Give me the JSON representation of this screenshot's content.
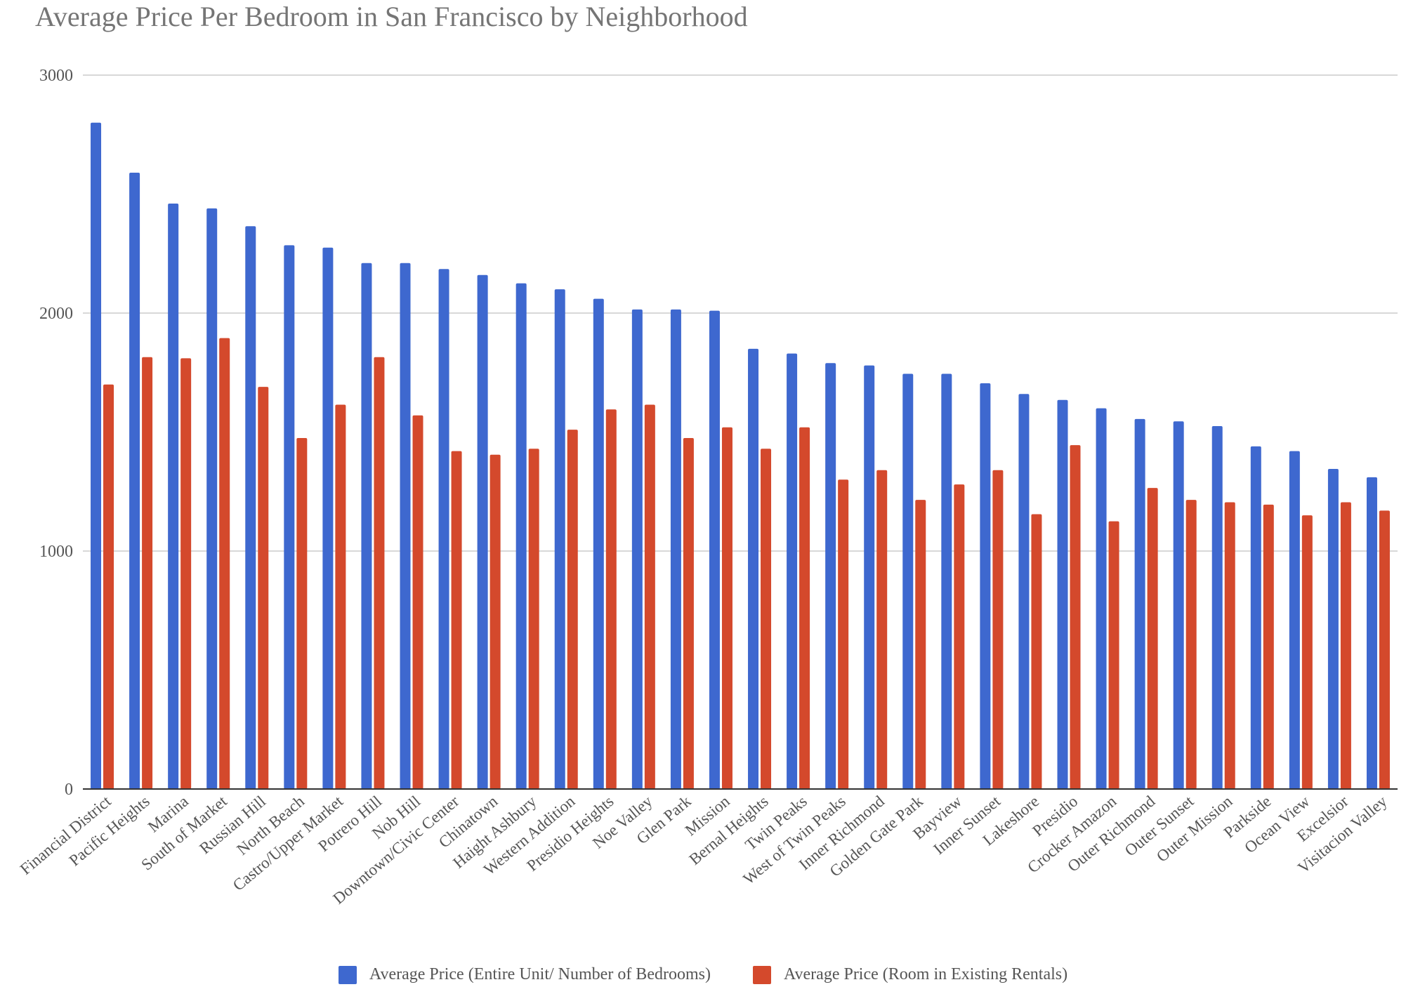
{
  "chart_data": {
    "type": "bar",
    "title": "Average Price Per Bedroom in San Francisco by Neighborhood",
    "xlabel": "",
    "ylabel": "",
    "ylim": [
      0,
      3000
    ],
    "yticks": [
      0,
      1000,
      2000,
      3000
    ],
    "grid": true,
    "legend_position": "bottom",
    "categories": [
      "Financial District",
      "Pacific Heights",
      "Marina",
      "South of Market",
      "Russian Hill",
      "North Beach",
      "Castro/Upper Market",
      "Potrero Hill",
      "Nob Hill",
      "Downtown/Civic Center",
      "Chinatown",
      "Haight Ashbury",
      "Western Addition",
      "Presidio Heights",
      "Noe Valley",
      "Glen Park",
      "Mission",
      "Bernal Heights",
      "Twin Peaks",
      "West of Twin Peaks",
      "Inner Richmond",
      "Golden Gate Park",
      "Bayview",
      "Inner Sunset",
      "Lakeshore",
      "Presidio",
      "Crocker Amazon",
      "Outer Richmond",
      "Outer Sunset",
      "Outer Mission",
      "Parkside",
      "Ocean View",
      "Excelsior",
      "Visitacion Valley"
    ],
    "series": [
      {
        "name": "Average Price (Entire Unit/ Number of Bedrooms)",
        "color": "#3e68cf",
        "values": [
          2800,
          2590,
          2460,
          2440,
          2365,
          2285,
          2275,
          2210,
          2210,
          2185,
          2160,
          2125,
          2100,
          2060,
          2015,
          2015,
          2010,
          1850,
          1830,
          1790,
          1780,
          1745,
          1745,
          1705,
          1660,
          1635,
          1600,
          1555,
          1545,
          1525,
          1440,
          1420,
          1345,
          1310
        ]
      },
      {
        "name": "Average Price (Room in Existing Rentals)",
        "color": "#d4492c",
        "values": [
          1700,
          1815,
          1810,
          1895,
          1690,
          1475,
          1615,
          1815,
          1570,
          1420,
          1405,
          1430,
          1510,
          1595,
          1615,
          1475,
          1520,
          1430,
          1520,
          1300,
          1340,
          1215,
          1280,
          1340,
          1155,
          1445,
          1125,
          1265,
          1215,
          1205,
          1195,
          1150,
          1205,
          1170
        ]
      }
    ]
  }
}
